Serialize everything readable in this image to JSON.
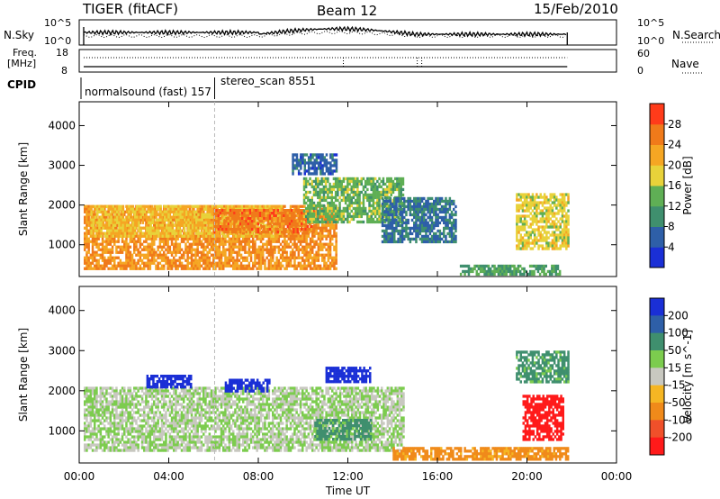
{
  "header": {
    "station": "TIGER (fitACF)",
    "beam": "Beam 12",
    "date": "15/Feb/2010"
  },
  "sky_panel": {
    "left_label": "N.Sky",
    "left_ticks": [
      "10^5",
      "10^0"
    ],
    "right_label": "N.Search",
    "right_ticks": [
      "10^5",
      "10^0"
    ]
  },
  "freq_panel": {
    "left_label_line1": "Freq.",
    "left_label_line2": "[MHz]",
    "left_ticks": [
      "18",
      "8"
    ],
    "right_label": "Nave",
    "right_ticks": [
      "60",
      "0"
    ]
  },
  "cpid": {
    "label": "CPID",
    "programs": [
      "normalsound (fast) 157",
      "stereo_scan 8551"
    ]
  },
  "colors": {
    "power_scale": [
      "#1a2fd6",
      "#2e5fa8",
      "#3f8f6e",
      "#5faf55",
      "#e8d23a",
      "#f5a623",
      "#f07a1a",
      "#ff3b1a"
    ],
    "velocity_scale": [
      "#1a2fd6",
      "#2e5fa8",
      "#3f8f6e",
      "#7ccc4e",
      "#c8c8c0",
      "#f5b623",
      "#f08a1a",
      "#f0502a",
      "#ff1a1a"
    ]
  },
  "chart_data": [
    {
      "type": "heatmap",
      "title": "",
      "xlabel": "Time UT",
      "ylabel": "Slant Range [km]",
      "x_ticks": [
        "00:00",
        "04:00",
        "08:00",
        "12:00",
        "16:00",
        "20:00",
        "00:00"
      ],
      "y_ticks": [
        "1000",
        "2000",
        "3000",
        "4000"
      ],
      "ylim": [
        200,
        4600
      ],
      "colorbar_label": "Power [dB]",
      "colorbar_ticks": [
        "4",
        "8",
        "12",
        "16",
        "20",
        "24",
        "28"
      ],
      "regions": [
        {
          "t0": 0.2,
          "t1": 11.5,
          "r0": 400,
          "r1": 2000,
          "value": 26
        },
        {
          "t0": 0.5,
          "t1": 9.0,
          "r0": 1200,
          "r1": 2000,
          "value": 22
        },
        {
          "t0": 6.0,
          "t1": 10.5,
          "r0": 1300,
          "r1": 1900,
          "value": 28
        },
        {
          "t0": 10.0,
          "t1": 14.5,
          "r0": 1600,
          "r1": 2700,
          "value": 16
        },
        {
          "t0": 13.5,
          "t1": 16.8,
          "r0": 1100,
          "r1": 2200,
          "value": 10
        },
        {
          "t0": 19.5,
          "t1": 21.8,
          "r0": 900,
          "r1": 2300,
          "value": 20
        },
        {
          "t0": 17.0,
          "t1": 21.5,
          "r0": 250,
          "r1": 500,
          "value": 14
        },
        {
          "t0": 9.5,
          "t1": 11.5,
          "r0": 2800,
          "r1": 3300,
          "value": 8
        }
      ]
    },
    {
      "type": "heatmap",
      "title": "",
      "xlabel": "Time UT",
      "ylabel": "Slant Range [km]",
      "x_ticks": [
        "00:00",
        "04:00",
        "08:00",
        "12:00",
        "16:00",
        "20:00",
        "00:00"
      ],
      "y_ticks": [
        "1000",
        "2000",
        "3000",
        "4000"
      ],
      "ylim": [
        200,
        4600
      ],
      "colorbar_label": "Velocity [m s^-1]",
      "colorbar_ticks": [
        "200",
        "100",
        "50",
        "15",
        "-15",
        "-50",
        "-100",
        "-200"
      ],
      "regions": [
        {
          "t0": 0.2,
          "t1": 14.5,
          "r0": 500,
          "r1": 2100,
          "value": 0
        },
        {
          "t0": 3.0,
          "t1": 5.0,
          "r0": 2100,
          "r1": 2400,
          "value": 200
        },
        {
          "t0": 6.5,
          "t1": 8.5,
          "r0": 2000,
          "r1": 2300,
          "value": 180
        },
        {
          "t0": 11.0,
          "t1": 13.0,
          "r0": 2200,
          "r1": 2600,
          "value": 200
        },
        {
          "t0": 10.5,
          "t1": 13.0,
          "r0": 800,
          "r1": 1300,
          "value": 40
        },
        {
          "t0": 14.0,
          "t1": 21.8,
          "r0": 300,
          "r1": 600,
          "value": -50
        },
        {
          "t0": 19.8,
          "t1": 21.6,
          "r0": 800,
          "r1": 1900,
          "value": -200
        },
        {
          "t0": 19.5,
          "t1": 21.8,
          "r0": 2200,
          "r1": 3000,
          "value": 40
        }
      ]
    }
  ]
}
